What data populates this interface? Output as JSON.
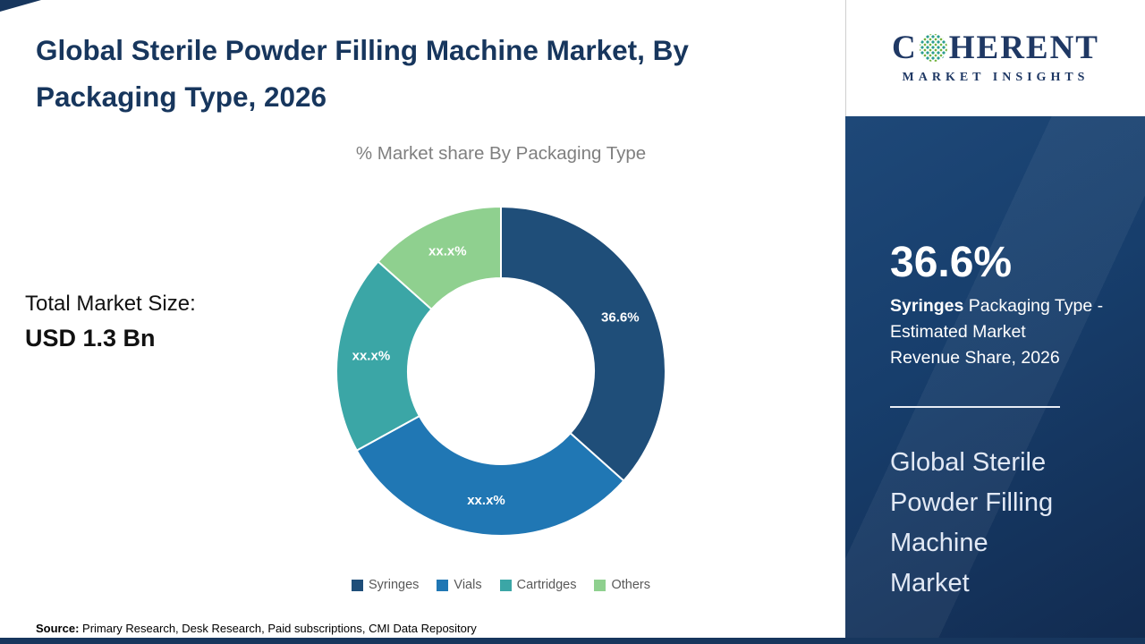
{
  "page": {
    "title_lines": [
      "Global Sterile Powder Filling Machine Market, By",
      "Packaging Type, 2026"
    ],
    "total_label": "Total Market Size:",
    "total_value": "USD 1.3 Bn",
    "source_label": "Source:",
    "source_text": " Primary Research, Desk Research, Paid subscriptions, CMI Data Repository"
  },
  "logo": {
    "prefix": "C",
    "suffix": "HERENT",
    "subtitle": "MARKET INSIGHTS"
  },
  "panel": {
    "highlight_value": "36.6%",
    "highlight_bold": "Syringes",
    "highlight_line1_rest": " Packaging Type -",
    "highlight_line2": "Estimated Market",
    "highlight_line3": "Revenue Share, 2026",
    "market_lines": [
      "Global Sterile",
      "Powder Filling",
      "Machine",
      "Market"
    ]
  },
  "colors": {
    "accent_navy": "#17365D",
    "panel_background": "#16355E"
  },
  "chart_data": {
    "type": "pie",
    "subtype": "donut",
    "title": "% Market share By Packaging Type",
    "unit": "%",
    "legend_position": "bottom",
    "values_note": "Only the Syringes share (36.6%) is displayed; other slices are masked as xx.x% in the image, numeric values estimated from arc angles",
    "segments": [
      {
        "name": "Syringes",
        "value": 36.6,
        "label": "36.6%",
        "color": "#1F4E79"
      },
      {
        "name": "Vials",
        "value": 30.4,
        "label": "xx.x%",
        "color": "#2077B4"
      },
      {
        "name": "Cartridges",
        "value": 19.6,
        "label": "xx.x%",
        "color": "#3BA6A6"
      },
      {
        "name": "Others",
        "value": 13.4,
        "label": "xx.x%",
        "color": "#8FD08F"
      }
    ]
  }
}
